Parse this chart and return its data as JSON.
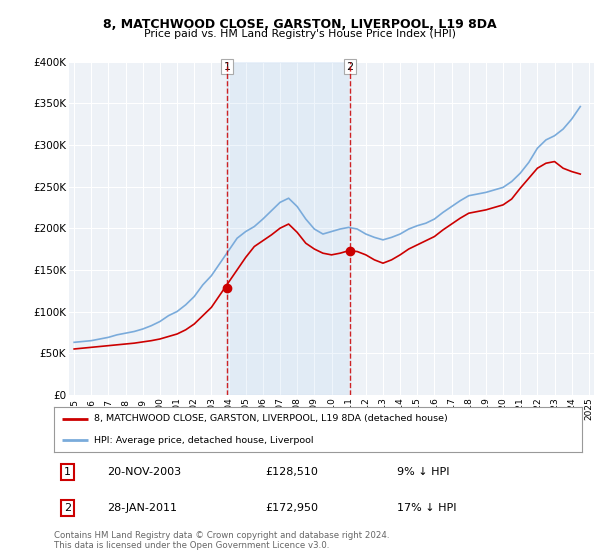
{
  "title_line1": "8, MATCHWOOD CLOSE, GARSTON, LIVERPOOL, L19 8DA",
  "title_line2": "Price paid vs. HM Land Registry's House Price Index (HPI)",
  "ylim": [
    0,
    400000
  ],
  "yticks": [
    0,
    50000,
    100000,
    150000,
    200000,
    250000,
    300000,
    350000,
    400000
  ],
  "ytick_labels": [
    "£0",
    "£50K",
    "£100K",
    "£150K",
    "£200K",
    "£250K",
    "£300K",
    "£350K",
    "£400K"
  ],
  "background_color": "#ffffff",
  "plot_bg_color": "#eef2f7",
  "grid_color": "#ffffff",
  "sale1_date": "20-NOV-2003",
  "sale1_price": 128510,
  "sale1_price_str": "£128,510",
  "sale1_hpi_pct": "9% ↓ HPI",
  "sale2_date": "28-JAN-2011",
  "sale2_price": 172950,
  "sale2_price_str": "£172,950",
  "sale2_hpi_pct": "17% ↓ HPI",
  "vline1_year": 2003.9,
  "vline2_year": 2011.08,
  "marker1_price": 128510,
  "marker2_price": 172950,
  "legend_label1": "8, MATCHWOOD CLOSE, GARSTON, LIVERPOOL, L19 8DA (detached house)",
  "legend_label2": "HPI: Average price, detached house, Liverpool",
  "line1_color": "#cc0000",
  "line2_color": "#7aabdb",
  "vline_color": "#cc0000",
  "footer_text": "Contains HM Land Registry data © Crown copyright and database right 2024.\nThis data is licensed under the Open Government Licence v3.0.",
  "hpi_years": [
    1995,
    1995.5,
    1996,
    1996.5,
    1997,
    1997.5,
    1998,
    1998.5,
    1999,
    1999.5,
    2000,
    2000.5,
    2001,
    2001.5,
    2002,
    2002.5,
    2003,
    2003.5,
    2004,
    2004.5,
    2005,
    2005.5,
    2006,
    2006.5,
    2007,
    2007.5,
    2008,
    2008.5,
    2009,
    2009.5,
    2010,
    2010.5,
    2011,
    2011.5,
    2012,
    2012.5,
    2013,
    2013.5,
    2014,
    2014.5,
    2015,
    2015.5,
    2016,
    2016.5,
    2017,
    2017.5,
    2018,
    2018.5,
    2019,
    2019.5,
    2020,
    2020.5,
    2021,
    2021.5,
    2022,
    2022.5,
    2023,
    2023.5,
    2024,
    2024.5
  ],
  "hpi_values": [
    63000,
    64000,
    65000,
    67000,
    69000,
    72000,
    74000,
    76000,
    79000,
    83000,
    88000,
    95000,
    100000,
    108000,
    118000,
    132000,
    143000,
    158000,
    173000,
    188000,
    196000,
    202000,
    211000,
    221000,
    231000,
    236000,
    226000,
    211000,
    199000,
    193000,
    196000,
    199000,
    201000,
    199000,
    193000,
    189000,
    186000,
    189000,
    193000,
    199000,
    203000,
    206000,
    211000,
    219000,
    226000,
    233000,
    239000,
    241000,
    243000,
    246000,
    249000,
    256000,
    266000,
    279000,
    296000,
    306000,
    311000,
    319000,
    331000,
    346000
  ],
  "price_years": [
    1995,
    1995.5,
    1996,
    1996.5,
    1997,
    1997.5,
    1998,
    1998.5,
    1999,
    1999.5,
    2000,
    2000.5,
    2001,
    2001.5,
    2002,
    2002.5,
    2003,
    2003.5,
    2004,
    2004.5,
    2005,
    2005.5,
    2006,
    2006.5,
    2007,
    2007.5,
    2008,
    2008.5,
    2009,
    2009.5,
    2010,
    2010.5,
    2011,
    2011.5,
    2012,
    2012.5,
    2013,
    2013.5,
    2014,
    2014.5,
    2015,
    2015.5,
    2016,
    2016.5,
    2017,
    2017.5,
    2018,
    2018.5,
    2019,
    2019.5,
    2020,
    2020.5,
    2021,
    2021.5,
    2022,
    2022.5,
    2023,
    2023.5,
    2024,
    2024.5
  ],
  "price_values": [
    55000,
    56000,
    57000,
    58000,
    59000,
    60000,
    61000,
    62000,
    63500,
    65000,
    67000,
    70000,
    73000,
    78000,
    85000,
    95000,
    105000,
    120000,
    135000,
    150000,
    165000,
    178000,
    185000,
    192000,
    200000,
    205000,
    195000,
    182000,
    175000,
    170000,
    168000,
    170000,
    172950,
    172000,
    168000,
    162000,
    158000,
    162000,
    168000,
    175000,
    180000,
    185000,
    190000,
    198000,
    205000,
    212000,
    218000,
    220000,
    222000,
    225000,
    228000,
    235000,
    248000,
    260000,
    272000,
    278000,
    280000,
    272000,
    268000,
    265000
  ]
}
